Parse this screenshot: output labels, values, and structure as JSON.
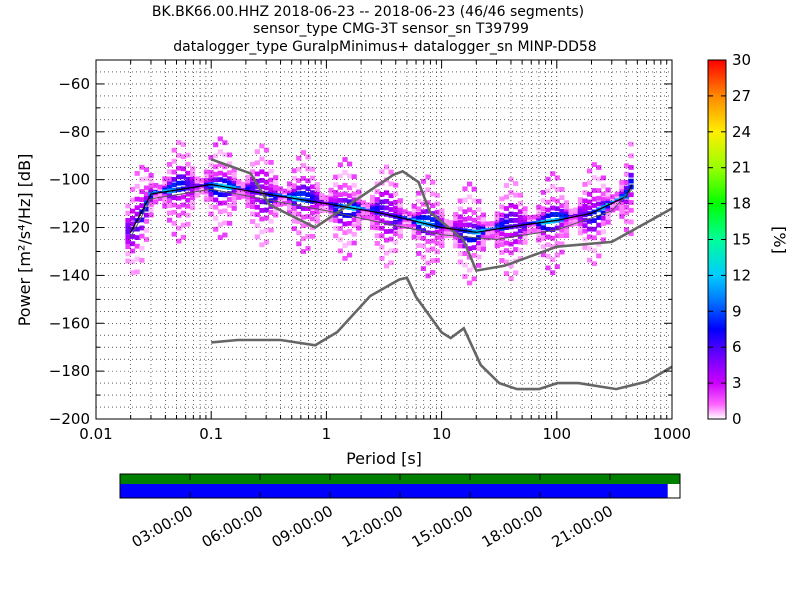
{
  "chart_data": {
    "type": "heatmap",
    "title_lines": [
      "BK.BK66.00.HHZ   2018-06-23 -- 2018-06-23  (46/46 segments)",
      "sensor_type CMG-3T sensor_sn T39799",
      "datalogger_type GuralpMinimus+ datalogger_sn MINP-DD58"
    ],
    "xlabel": "Period [s]",
    "ylabel": "Power [m²/s⁴/Hz] [dB]",
    "xscale": "log",
    "xlim": [
      0.01,
      1000
    ],
    "ylim": [
      -200,
      -50
    ],
    "xticks": [
      "0.01",
      "0.1",
      "1",
      "10",
      "100",
      "1000"
    ],
    "yticks": [
      "−60",
      "−80",
      "−100",
      "−120",
      "−140",
      "−160",
      "−180",
      "−200"
    ],
    "colorbar": {
      "label": "[%]",
      "range": [
        0,
        30
      ],
      "ticks": [
        "0",
        "3",
        "6",
        "9",
        "12",
        "15",
        "18",
        "21",
        "24",
        "27",
        "30"
      ]
    },
    "noise_models": {
      "high": [
        [
          0.1,
          -91.5
        ],
        [
          0.22,
          -97.4
        ],
        [
          0.32,
          -110.5
        ],
        [
          0.8,
          -120
        ],
        [
          3.8,
          -98
        ],
        [
          4.6,
          -96.5
        ],
        [
          6.3,
          -101
        ],
        [
          7.9,
          -113.5
        ],
        [
          15.4,
          -125
        ],
        [
          20,
          -138
        ],
        [
          35,
          -136
        ],
        [
          100,
          -128
        ],
        [
          300,
          -126
        ],
        [
          600,
          -118
        ],
        [
          1000,
          -112
        ]
      ],
      "low": [
        [
          0.1,
          -168
        ],
        [
          0.17,
          -167
        ],
        [
          0.4,
          -167
        ],
        [
          0.8,
          -169.2
        ],
        [
          1.24,
          -163.7
        ],
        [
          2.4,
          -148.6
        ],
        [
          4.3,
          -141.7
        ],
        [
          5.0,
          -141
        ],
        [
          6.0,
          -149
        ],
        [
          10,
          -163.8
        ],
        [
          12,
          -166.2
        ],
        [
          15.6,
          -162.1
        ],
        [
          21.9,
          -177.5
        ],
        [
          31.6,
          -185
        ],
        [
          45,
          -187.5
        ],
        [
          70,
          -187.5
        ],
        [
          101,
          -185
        ],
        [
          154,
          -185
        ],
        [
          328,
          -187.5
        ],
        [
          600,
          -184.4
        ],
        [
          1000,
          -178.2
        ]
      ]
    },
    "mean_curve": [
      [
        0.02,
        -122
      ],
      [
        0.03,
        -106
      ],
      [
        0.1,
        -102
      ],
      [
        0.3,
        -106
      ],
      [
        1,
        -110
      ],
      [
        3,
        -114
      ],
      [
        10,
        -120
      ],
      [
        20,
        -122
      ],
      [
        50,
        -119
      ],
      [
        100,
        -117
      ],
      [
        200,
        -114
      ],
      [
        400,
        -107
      ],
      [
        450,
        -102
      ]
    ],
    "mode_curve": [
      [
        0.02,
        -124
      ],
      [
        0.03,
        -108
      ],
      [
        0.1,
        -104
      ],
      [
        1,
        -113
      ],
      [
        3,
        -118
      ],
      [
        10,
        -123
      ],
      [
        30,
        -125
      ],
      [
        100,
        -121
      ],
      [
        300,
        -113
      ],
      [
        450,
        -104
      ]
    ],
    "bands": [
      {
        "offset": 5,
        "pct": 3
      },
      {
        "offset": 3,
        "pct": 5
      },
      {
        "offset": 1.5,
        "pct": 8
      },
      {
        "offset": 0,
        "pct": 12
      },
      {
        "offset": -2,
        "pct": 7
      },
      {
        "offset": -4,
        "pct": 4
      },
      {
        "offset": -6,
        "pct": 2
      },
      {
        "offset": 8,
        "pct": 1
      },
      {
        "offset": -9,
        "pct": 1
      },
      {
        "offset": -12,
        "pct": 2
      },
      {
        "offset": 11,
        "pct": 2
      }
    ],
    "timeline": {
      "labels": [
        "03:00:00",
        "06:00:00",
        "09:00:00",
        "12:00:00",
        "15:00:00",
        "18:00:00",
        "21:00:00"
      ],
      "data_fraction": 0.978,
      "data_color": "#0000ff",
      "available_color": "#008000"
    }
  }
}
